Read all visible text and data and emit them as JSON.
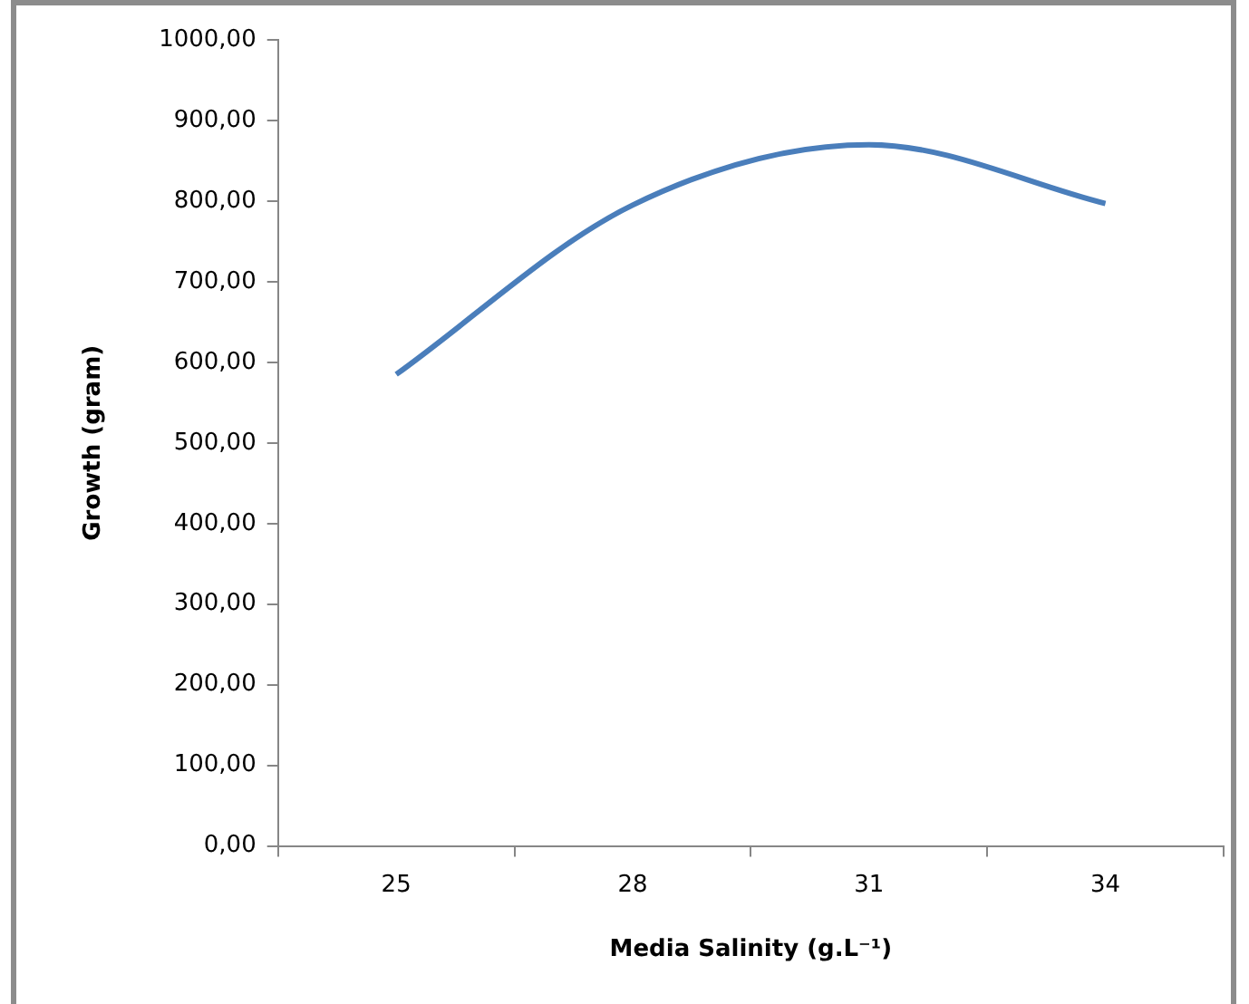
{
  "chart_data": {
    "type": "line",
    "xlabel": "Media Salinity (g.L⁻¹)",
    "ylabel": "Growth (gram)",
    "categories": [
      "25",
      "28",
      "31",
      "34"
    ],
    "series": [
      {
        "color": "#4a7ebb",
        "values": [
          585,
          795,
          870,
          797
        ]
      }
    ],
    "ylim": [
      0,
      1000
    ],
    "yticks": [
      {
        "value": 0,
        "label": "0,00"
      },
      {
        "value": 100,
        "label": "100,00"
      },
      {
        "value": 200,
        "label": "200,00"
      },
      {
        "value": 300,
        "label": "300,00"
      },
      {
        "value": 400,
        "label": "400,00"
      },
      {
        "value": 500,
        "label": "500,00"
      },
      {
        "value": 600,
        "label": "600,00"
      },
      {
        "value": 700,
        "label": "700,00"
      },
      {
        "value": 800,
        "label": "800,00"
      },
      {
        "value": 900,
        "label": "900,00"
      },
      {
        "value": 1000,
        "label": "1000,00"
      }
    ],
    "grid": false,
    "legend": false,
    "marker": "none",
    "line_style": "solid"
  }
}
